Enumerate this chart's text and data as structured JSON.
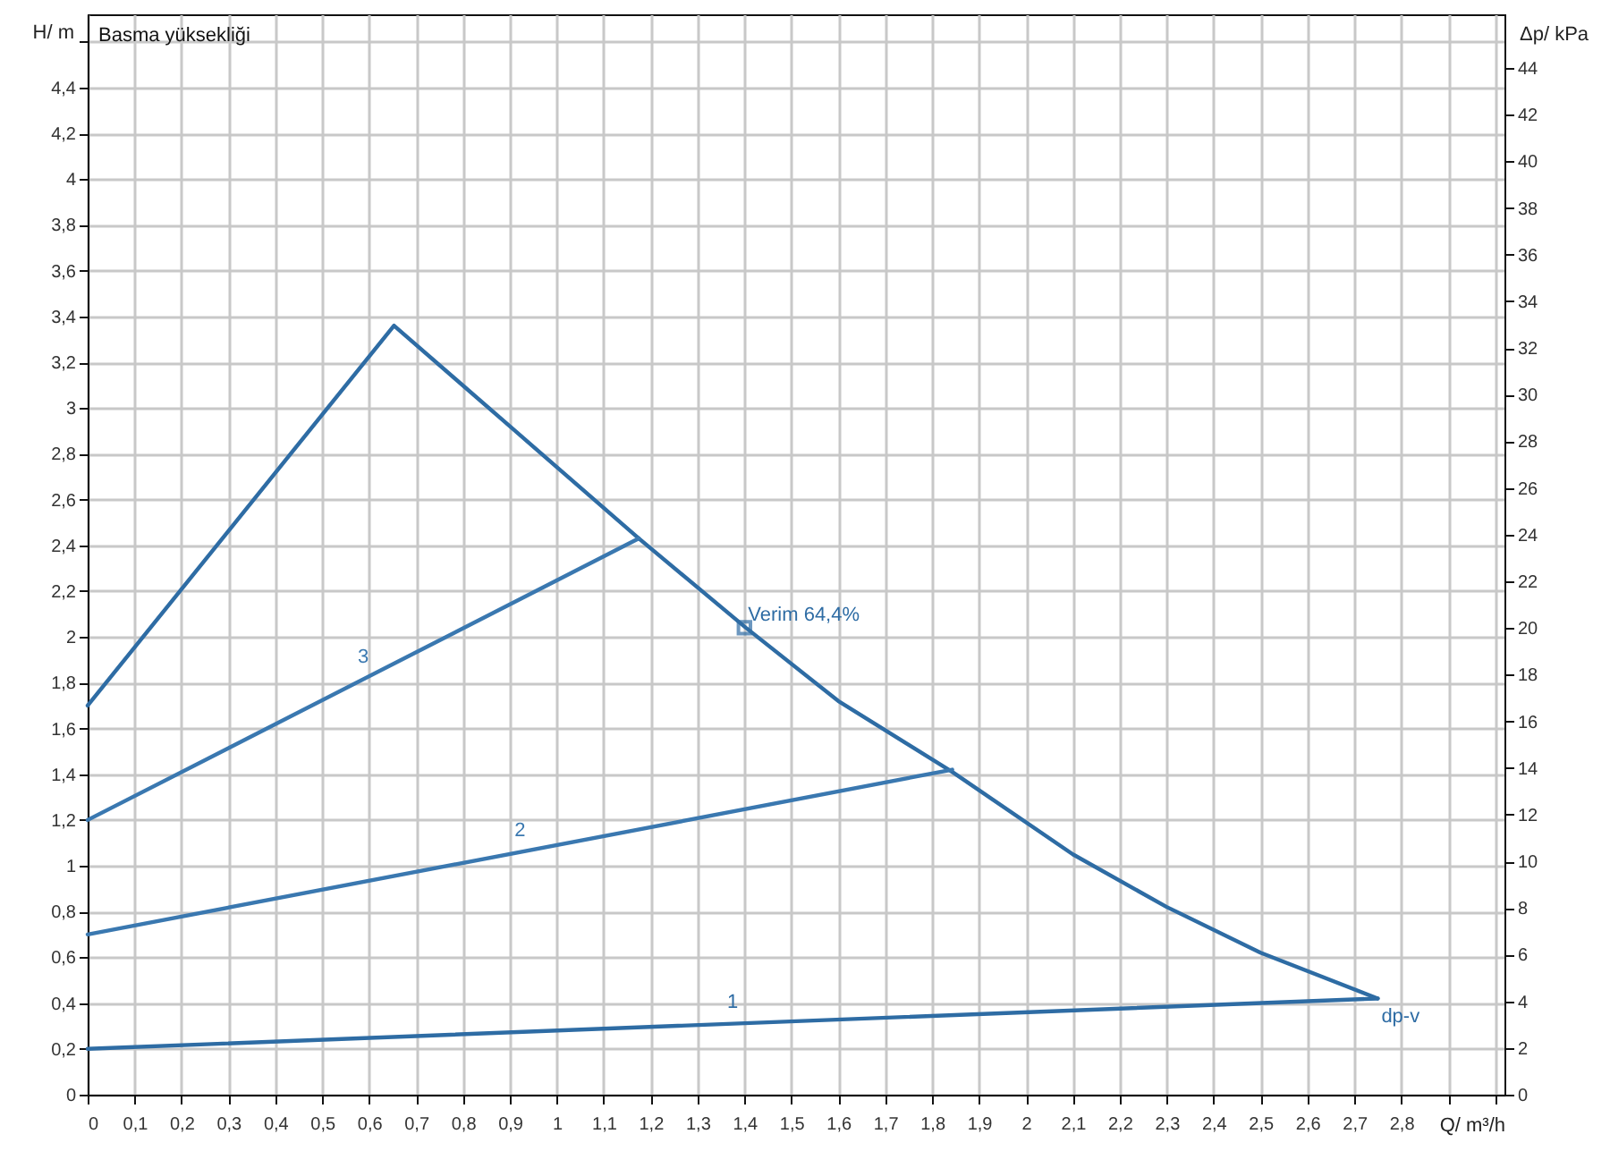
{
  "chart_data": {
    "type": "line",
    "xlabel": "Q/ m³/h",
    "ylabel": "H/ m",
    "y2label": "Δp/ kPa",
    "annotations": [
      "Basma yüksekliği",
      {
        "text": "Verim 64,4%",
        "x": 1.4,
        "y": 2.04
      },
      {
        "text": "dp-v",
        "x": 2.75,
        "y": 0.42
      }
    ],
    "series": [
      {
        "type": "line",
        "color": "#2e6ca4",
        "x": [
          0,
          0.653,
          0.9,
          1.175,
          1.403,
          1.6,
          1.843,
          2.1,
          2.3,
          2.5,
          2.75
        ],
        "values": [
          1.7,
          3.36,
          2.92,
          2.43,
          2.04,
          1.72,
          1.41,
          1.05,
          0.82,
          0.62,
          0.42
        ]
      },
      {
        "type": "line",
        "name": "1",
        "color": "#2e6ca4",
        "x": [
          0,
          2.75
        ],
        "values": [
          0.2,
          0.42
        ]
      },
      {
        "type": "line",
        "name": "2",
        "color": "#3a78b0",
        "x": [
          0,
          1.843
        ],
        "values": [
          0.7,
          1.42
        ]
      },
      {
        "type": "line",
        "name": "3",
        "color": "#3a78b0",
        "x": [
          0,
          1.175
        ],
        "values": [
          1.2,
          2.43
        ]
      },
      {
        "type": "scatter",
        "marker": "square",
        "color": "#2e6ca4",
        "x": [
          1.4
        ],
        "values": [
          2.04
        ]
      }
    ],
    "xlim": [
      0,
      3.02
    ],
    "xticks": [
      0,
      {
        "value": 0.1,
        "label": "0,1"
      },
      {
        "value": 0.2,
        "label": "0,2"
      },
      {
        "value": 0.3,
        "label": "0,3"
      },
      {
        "value": 0.4,
        "label": "0,4"
      },
      {
        "value": 0.5,
        "label": "0,5"
      },
      {
        "value": 0.6,
        "label": "0,6"
      },
      {
        "value": 0.7,
        "label": "0,7"
      },
      {
        "value": 0.8,
        "label": "0,8"
      },
      {
        "value": 0.9,
        "label": "0,9"
      },
      1,
      {
        "value": 1.1,
        "label": "1,1"
      },
      {
        "value": 1.2,
        "label": "1,2"
      },
      {
        "value": 1.3,
        "label": "1,3"
      },
      {
        "value": 1.4,
        "label": "1,4"
      },
      {
        "value": 1.5,
        "label": "1,5"
      },
      {
        "value": 1.6,
        "label": "1,6"
      },
      {
        "value": 1.7,
        "label": "1,7"
      },
      {
        "value": 1.8,
        "label": "1,8"
      },
      {
        "value": 1.9,
        "label": "1,9"
      },
      2,
      {
        "value": 2.1,
        "label": "2,1"
      },
      {
        "value": 2.2,
        "label": "2,2"
      },
      {
        "value": 2.3,
        "label": "2,3"
      },
      {
        "value": 2.4,
        "label": "2,4"
      },
      {
        "value": 2.5,
        "label": "2,5"
      },
      {
        "value": 2.6,
        "label": "2,6"
      },
      {
        "value": 2.7,
        "label": "2,7"
      },
      {
        "value": 2.8,
        "label": "2,8"
      },
      {
        "value": 2.9,
        "label": null
      },
      {
        "value": 3,
        "label": null
      }
    ],
    "ylim": [
      0,
      4.72
    ],
    "yticks": [
      0,
      {
        "value": 0.2,
        "label": "0,2"
      },
      {
        "value": 0.4,
        "label": "0,4"
      },
      {
        "value": 0.6,
        "label": "0,6"
      },
      {
        "value": 0.8,
        "label": "0,8"
      },
      1,
      {
        "value": 1.2,
        "label": "1,2"
      },
      {
        "value": 1.4,
        "label": "1,4"
      },
      {
        "value": 1.6,
        "label": "1,6"
      },
      {
        "value": 1.8,
        "label": "1,8"
      },
      2,
      {
        "value": 2.2,
        "label": "2,2"
      },
      {
        "value": 2.4,
        "label": "2,4"
      },
      {
        "value": 2.6,
        "label": "2,6"
      },
      {
        "value": 2.8,
        "label": "2,8"
      },
      3,
      {
        "value": 3.2,
        "label": "3,2"
      },
      {
        "value": 3.4,
        "label": "3,4"
      },
      {
        "value": 3.6,
        "label": "3,6"
      },
      {
        "value": 3.8,
        "label": "3,8"
      },
      4,
      {
        "value": 4.2,
        "label": "4,2"
      },
      {
        "value": 4.4,
        "label": "4,4"
      },
      {
        "value": 4.6,
        "label": null
      }
    ],
    "y2lim": [
      0,
      46.3
    ],
    "y2ticks": [
      0,
      2,
      4,
      6,
      8,
      10,
      12,
      14,
      16,
      18,
      20,
      22,
      24,
      26,
      28,
      30,
      32,
      34,
      36,
      38,
      40,
      42,
      44
    ],
    "grid": true
  }
}
